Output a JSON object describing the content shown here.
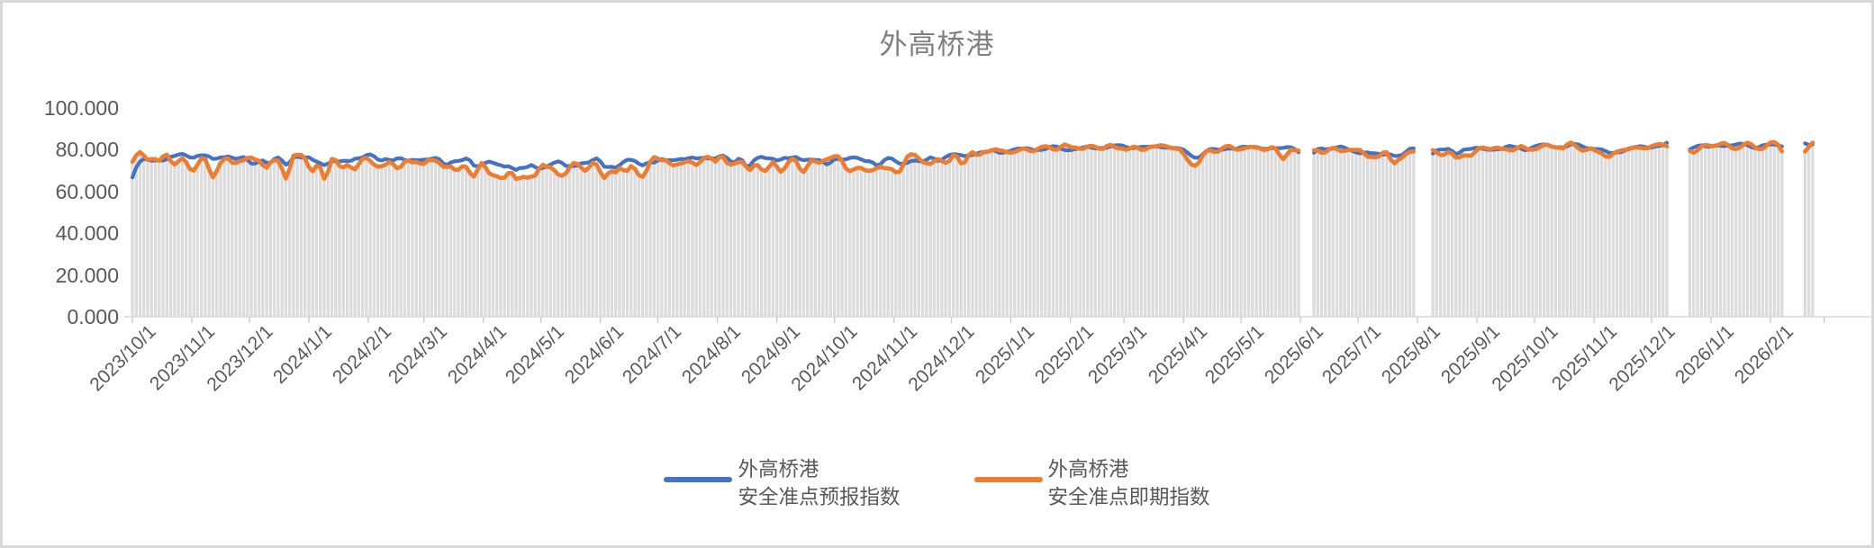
{
  "chart_data": {
    "type": "line",
    "subtype": "two line series over light-gray background columns (combo chart)",
    "title": "外高桥港",
    "x_start_date": "2023/10/1",
    "x_last_data_date": "2026/2/23",
    "x_tick_labels": [
      "2023/10/1",
      "2023/11/1",
      "2023/12/1",
      "2024/1/1",
      "2024/2/1",
      "2024/3/1",
      "2024/4/1",
      "2024/5/1",
      "2024/6/1",
      "2024/7/1",
      "2024/8/1",
      "2024/9/1",
      "2024/10/1",
      "2024/11/1",
      "2024/12/1",
      "2025/1/1",
      "2025/2/1",
      "2025/3/1",
      "2025/4/1",
      "2025/5/1",
      "2025/6/1",
      "2025/7/1",
      "2025/8/1",
      "2025/9/1",
      "2025/10/1",
      "2025/11/1",
      "2025/12/1",
      "2026/1/1",
      "2026/2/1"
    ],
    "y_tick_labels": [
      "0.000",
      "20.000",
      "40.000",
      "60.000",
      "80.000",
      "100.000"
    ],
    "y_tick_values": [
      0,
      20,
      40,
      60,
      80,
      100
    ],
    "ylim": [
      0,
      100
    ],
    "grid": "none",
    "legend_position": "bottom",
    "sample_step_days": 2,
    "gaps_day_ranges": [
      [
        610,
        614
      ],
      [
        670,
        677
      ],
      [
        802,
        811
      ],
      [
        862,
        871
      ]
    ],
    "last_day": 876,
    "series": [
      {
        "name": "外高桥港安全准点预报指数",
        "color": "#4472C4",
        "anchors_day_value": [
          [
            0,
            68
          ],
          [
            3,
            74
          ],
          [
            10,
            76
          ],
          [
            31,
            77
          ],
          [
            61,
            76
          ],
          [
            92,
            76
          ],
          [
            110,
            74
          ],
          [
            123,
            76
          ],
          [
            152,
            76
          ],
          [
            183,
            74
          ],
          [
            200,
            72
          ],
          [
            213,
            72
          ],
          [
            230,
            73
          ],
          [
            244,
            74
          ],
          [
            274,
            75
          ],
          [
            305,
            76
          ],
          [
            336,
            76
          ],
          [
            366,
            75
          ],
          [
            397,
            74
          ],
          [
            427,
            76
          ],
          [
            440,
            78
          ],
          [
            458,
            80
          ],
          [
            489,
            81
          ],
          [
            517,
            81
          ],
          [
            540,
            82
          ],
          [
            548,
            79
          ],
          [
            555,
            76
          ],
          [
            562,
            80
          ],
          [
            578,
            81
          ],
          [
            600,
            81
          ],
          [
            609,
            80
          ],
          [
            615,
            79
          ],
          [
            628,
            81
          ],
          [
            639,
            80
          ],
          [
            650,
            77
          ],
          [
            660,
            79
          ],
          [
            669,
            80
          ],
          [
            678,
            79
          ],
          [
            690,
            80
          ],
          [
            701,
            80
          ],
          [
            715,
            81
          ],
          [
            731,
            81
          ],
          [
            745,
            82
          ],
          [
            762,
            81
          ],
          [
            770,
            78
          ],
          [
            780,
            81
          ],
          [
            792,
            82
          ],
          [
            801,
            82
          ],
          [
            812,
            81
          ],
          [
            830,
            82
          ],
          [
            845,
            82
          ],
          [
            861,
            82
          ],
          [
            872,
            82
          ],
          [
            876,
            83
          ]
        ]
      },
      {
        "name": "外高桥港安全准点即期指数",
        "color": "#ED7D31",
        "anchors_day_value": [
          [
            0,
            78
          ],
          [
            10,
            75
          ],
          [
            31,
            75
          ],
          [
            61,
            74
          ],
          [
            92,
            75
          ],
          [
            110,
            73
          ],
          [
            123,
            74
          ],
          [
            152,
            74
          ],
          [
            183,
            71
          ],
          [
            200,
            70
          ],
          [
            213,
            70
          ],
          [
            230,
            71
          ],
          [
            244,
            72
          ],
          [
            274,
            73
          ],
          [
            305,
            74
          ],
          [
            336,
            74
          ],
          [
            366,
            73
          ],
          [
            397,
            73
          ],
          [
            427,
            75
          ],
          [
            440,
            77
          ],
          [
            458,
            80
          ],
          [
            489,
            81
          ],
          [
            517,
            81
          ],
          [
            540,
            82
          ],
          [
            548,
            78
          ],
          [
            555,
            73
          ],
          [
            562,
            80
          ],
          [
            578,
            81
          ],
          [
            600,
            80
          ],
          [
            609,
            79
          ],
          [
            615,
            78
          ],
          [
            628,
            80
          ],
          [
            639,
            79
          ],
          [
            650,
            76
          ],
          [
            660,
            78
          ],
          [
            669,
            79
          ],
          [
            678,
            78
          ],
          [
            690,
            79
          ],
          [
            701,
            80
          ],
          [
            715,
            81
          ],
          [
            731,
            81
          ],
          [
            745,
            82
          ],
          [
            762,
            80
          ],
          [
            770,
            77
          ],
          [
            780,
            81
          ],
          [
            792,
            82
          ],
          [
            801,
            81
          ],
          [
            812,
            80
          ],
          [
            830,
            82
          ],
          [
            845,
            81
          ],
          [
            861,
            82
          ],
          [
            872,
            82
          ],
          [
            876,
            83
          ]
        ]
      }
    ],
    "background_bars": {
      "color": "#DCDCDC",
      "height_follows": "外高桥港安全准点即期指数"
    },
    "noise_profile": [
      {
        "until_day": 430,
        "blue": 2.0,
        "orange": 5.0,
        "dip_prob": 0.1,
        "dip_depth": 9
      },
      {
        "until_day": 460,
        "blue": 1.5,
        "orange": 3.0,
        "dip_prob": 0.05,
        "dip_depth": 6
      },
      {
        "until_day": 610,
        "blue": 1.0,
        "orange": 1.8,
        "dip_prob": 0.03,
        "dip_depth": 4
      },
      {
        "until_day": 680,
        "blue": 1.3,
        "orange": 2.4,
        "dip_prob": 0.05,
        "dip_depth": 6
      },
      {
        "until_day": 9999,
        "blue": 1.0,
        "orange": 1.8,
        "dip_prob": 0.04,
        "dip_depth": 5
      }
    ],
    "value_clamp": [
      56,
      85
    ]
  },
  "legend": {
    "forecast": {
      "line1": "外高桥港",
      "line2": "安全准点预报指数",
      "color": "#4472C4"
    },
    "spot": {
      "line1": "外高桥港",
      "line2": "安全准点即期指数",
      "color": "#ED7D31"
    }
  },
  "colors": {
    "bar": "#DCDCDC",
    "axis_line": "#D9D9D9",
    "tick": "#C8C8C8",
    "label_text": "#595959",
    "title_text": "#7F7F7F",
    "background": "#FFFFFF",
    "border": "#D8D8D8"
  }
}
